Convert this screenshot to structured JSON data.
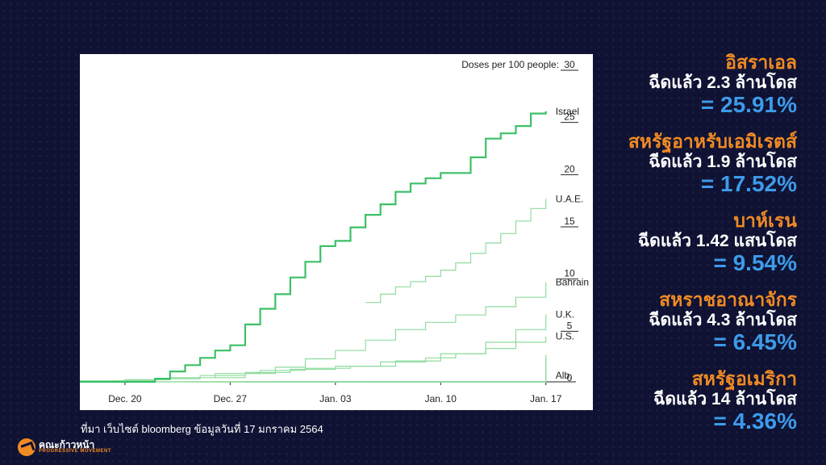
{
  "chart_data": {
    "type": "line",
    "title": "",
    "ylabel": "Doses per 100 people:",
    "y_ticks": [
      "30",
      "25",
      "20",
      "15",
      "10",
      "5",
      "0"
    ],
    "ylim": [
      0,
      30
    ],
    "x_ticks": [
      {
        "label": "Dec. 20",
        "day": 0
      },
      {
        "label": "Dec. 27",
        "day": 7
      },
      {
        "label": "Jan. 03",
        "day": 14
      },
      {
        "label": "Jan. 10",
        "day": 21
      },
      {
        "label": "Jan. 17",
        "day": 28
      }
    ],
    "xlim": [
      -3,
      30
    ],
    "labeled_series": [
      {
        "name": "Israel",
        "emphasis": true,
        "points": [
          [
            -3,
            0
          ],
          [
            1,
            0
          ],
          [
            2,
            0.3
          ],
          [
            3,
            1.0
          ],
          [
            4,
            1.6
          ],
          [
            5,
            2.3
          ],
          [
            6,
            3.0
          ],
          [
            7,
            3.5
          ],
          [
            8,
            5.5
          ],
          [
            9,
            7.0
          ],
          [
            10,
            8.4
          ],
          [
            11,
            10.0
          ],
          [
            12,
            11.5
          ],
          [
            13,
            13.0
          ],
          [
            14,
            13.5
          ],
          [
            15,
            14.8
          ],
          [
            16,
            16.0
          ],
          [
            17,
            17.0
          ],
          [
            18,
            18.2
          ],
          [
            19,
            19.0
          ],
          [
            20,
            19.5
          ],
          [
            21,
            20.0
          ],
          [
            22,
            20.0
          ],
          [
            23,
            21.5
          ],
          [
            24,
            23.3
          ],
          [
            25,
            23.8
          ],
          [
            26,
            24.5
          ],
          [
            27,
            25.7
          ],
          [
            28,
            25.91
          ]
        ]
      },
      {
        "name": "U.A.E.",
        "emphasis": false,
        "points": [
          [
            16,
            7.6
          ],
          [
            17,
            8.4
          ],
          [
            18,
            9.1
          ],
          [
            19,
            9.6
          ],
          [
            20,
            10.1
          ],
          [
            21,
            10.7
          ],
          [
            22,
            11.4
          ],
          [
            23,
            12.3
          ],
          [
            24,
            13.3
          ],
          [
            25,
            14.2
          ],
          [
            26,
            15.4
          ],
          [
            27,
            16.6
          ],
          [
            28,
            17.52
          ]
        ]
      },
      {
        "name": "Bahrain",
        "emphasis": false,
        "points": [
          [
            6,
            0.4
          ],
          [
            8,
            0.8
          ],
          [
            10,
            1.4
          ],
          [
            12,
            2.2
          ],
          [
            14,
            3.0
          ],
          [
            16,
            4.0
          ],
          [
            18,
            5.0
          ],
          [
            20,
            5.7
          ],
          [
            22,
            6.4
          ],
          [
            24,
            7.2
          ],
          [
            26,
            8.1
          ],
          [
            28,
            9.54
          ]
        ]
      },
      {
        "name": "U.K.",
        "emphasis": false,
        "points": [
          [
            -3,
            0.1
          ],
          [
            0,
            0.2
          ],
          [
            3,
            0.4
          ],
          [
            6,
            0.8
          ],
          [
            9,
            1.1
          ],
          [
            12,
            1.3
          ],
          [
            15,
            1.5
          ],
          [
            18,
            2.0
          ],
          [
            21,
            2.7
          ],
          [
            24,
            3.8
          ],
          [
            26,
            5.0
          ],
          [
            28,
            6.45
          ]
        ]
      },
      {
        "name": "U.S.",
        "emphasis": false,
        "points": [
          [
            -1,
            0.1
          ],
          [
            2,
            0.3
          ],
          [
            5,
            0.6
          ],
          [
            8,
            0.9
          ],
          [
            11,
            1.2
          ],
          [
            14,
            1.5
          ],
          [
            17,
            1.9
          ],
          [
            20,
            2.3
          ],
          [
            22,
            2.7
          ],
          [
            24,
            3.2
          ],
          [
            26,
            3.8
          ],
          [
            28,
            4.36
          ]
        ]
      },
      {
        "name": "Alb.",
        "emphasis": false,
        "points": [
          [
            25,
            0
          ],
          [
            28,
            0.05
          ]
        ]
      }
    ],
    "background_series": [
      {
        "points": [
          [
            0,
            0
          ],
          [
            28,
            2.6
          ]
        ]
      },
      {
        "points": [
          [
            2,
            0
          ],
          [
            28,
            2.2
          ]
        ]
      },
      {
        "points": [
          [
            4,
            0
          ],
          [
            28,
            1.9
          ]
        ]
      },
      {
        "points": [
          [
            5,
            0
          ],
          [
            28,
            1.6
          ]
        ]
      },
      {
        "points": [
          [
            7,
            0
          ],
          [
            28,
            1.4
          ]
        ]
      },
      {
        "points": [
          [
            8,
            0
          ],
          [
            28,
            1.2
          ]
        ]
      },
      {
        "points": [
          [
            10,
            0
          ],
          [
            28,
            1.0
          ]
        ]
      },
      {
        "points": [
          [
            11,
            0
          ],
          [
            28,
            0.85
          ]
        ]
      },
      {
        "points": [
          [
            13,
            0
          ],
          [
            28,
            0.7
          ]
        ]
      },
      {
        "points": [
          [
            14,
            0
          ],
          [
            28,
            0.55
          ]
        ]
      },
      {
        "points": [
          [
            16,
            0
          ],
          [
            28,
            0.45
          ]
        ]
      },
      {
        "points": [
          [
            18,
            0
          ],
          [
            28,
            0.35
          ]
        ]
      },
      {
        "points": [
          [
            20,
            0
          ],
          [
            28,
            0.25
          ]
        ]
      },
      {
        "points": [
          [
            22,
            0
          ],
          [
            28,
            0.18
          ]
        ]
      }
    ],
    "colors": {
      "emphasis": "#3cc066",
      "other": "#8fdc9f"
    }
  },
  "stats": [
    {
      "country": "อิสราเอล",
      "doses": "ฉีดแล้ว 2.3 ล้านโดส",
      "percent": "= 25.91%"
    },
    {
      "country": "สหรัฐอาหรับเอมิเรตส์",
      "doses": "ฉีดแล้ว 1.9 ล้านโดส",
      "percent": "= 17.52%"
    },
    {
      "country": "บาห์เรน",
      "doses": "ฉีดแล้ว 1.42 แสนโดส",
      "percent": "= 9.54%"
    },
    {
      "country": "สหราชอาณาจักร",
      "doses": "ฉีดแล้ว 4.3 ล้านโดส",
      "percent": "= 6.45%"
    },
    {
      "country": "สหรัฐอเมริกา",
      "doses": "ฉีดแล้ว 14 ล้านโดส",
      "percent": "= 4.36%"
    }
  ],
  "source_note": "ที่มา เว็บไซต์ bloomberg ข้อมูลวันที่ 17 มกราคม 2564",
  "logo": {
    "name": "คณะก้าวหน้า",
    "tagline": "PROGRESSIVE MOVEMENT"
  },
  "colors": {
    "accent_orange": "#f08a24",
    "accent_blue": "#3d9be9",
    "background": "#0f1233"
  }
}
